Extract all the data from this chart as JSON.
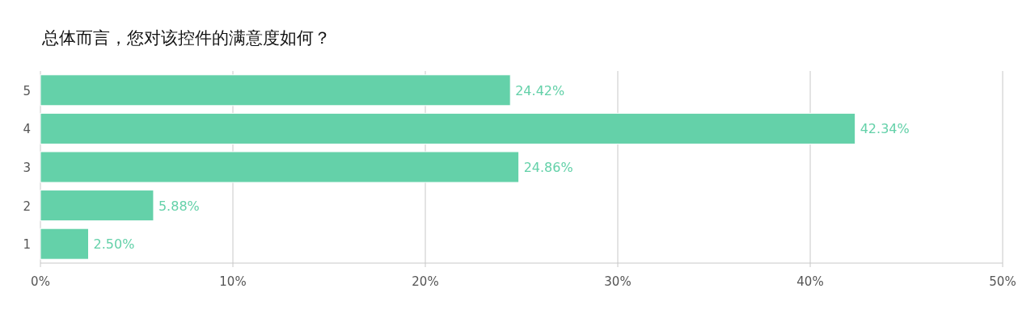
{
  "chart_data": {
    "type": "bar",
    "orientation": "horizontal",
    "title": "总体而言，您对该控件的满意度如何？",
    "categories": [
      "5",
      "4",
      "3",
      "2",
      "1"
    ],
    "values": [
      24.42,
      42.34,
      24.86,
      5.88,
      2.5
    ],
    "value_labels": [
      "24.42%",
      "42.34%",
      "24.86%",
      "5.88%",
      "2.50%"
    ],
    "color": "#64d1a9",
    "xlim": [
      0,
      50
    ],
    "xticks": [
      {
        "value": 0,
        "label": "0%"
      },
      {
        "value": 10,
        "label": "10%"
      },
      {
        "value": 20,
        "label": "20%"
      },
      {
        "value": 30,
        "label": "30%"
      },
      {
        "value": 40,
        "label": "40%"
      },
      {
        "value": 50,
        "label": "50%"
      }
    ],
    "grid": "x"
  }
}
